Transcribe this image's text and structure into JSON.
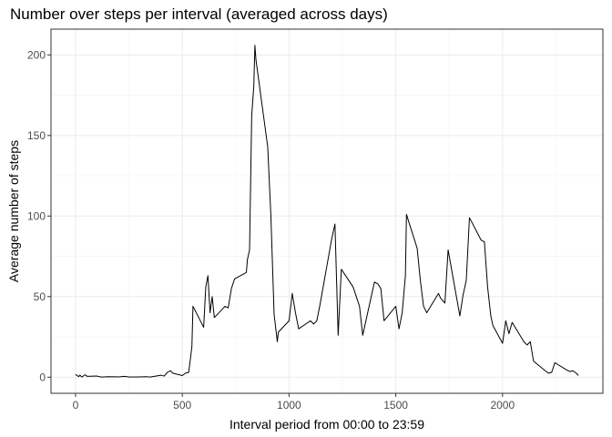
{
  "chart_data": {
    "type": "line",
    "title": "Number over steps per interval (averaged across days)",
    "xlabel": "Interval period from 00:00 to 23:59",
    "ylabel": "Average number of steps",
    "xlim": [
      -115,
      2470
    ],
    "ylim": [
      -10,
      216
    ],
    "xticks": [
      0,
      500,
      1000,
      1500,
      2000
    ],
    "yticks": [
      0,
      50,
      100,
      150,
      200
    ],
    "grid": true,
    "series": [
      {
        "x": [
          0,
          15,
          20,
          30,
          45,
          55,
          100,
          120,
          135,
          150,
          200,
          230,
          250,
          300,
          330,
          350,
          400,
          415,
          430,
          445,
          455,
          500,
          515,
          530,
          545,
          550,
          600,
          610,
          620,
          630,
          640,
          650,
          700,
          715,
          730,
          745,
          800,
          805,
          815,
          825,
          835,
          840,
          845,
          900,
          915,
          930,
          945,
          950,
          1000,
          1015,
          1030,
          1045,
          1100,
          1115,
          1130,
          1145,
          1200,
          1215,
          1230,
          1245,
          1300,
          1330,
          1345,
          1400,
          1415,
          1430,
          1445,
          1500,
          1515,
          1530,
          1545,
          1550,
          1600,
          1615,
          1630,
          1645,
          1700,
          1710,
          1730,
          1745,
          1800,
          1815,
          1830,
          1845,
          1900,
          1915,
          1930,
          1945,
          1955,
          2000,
          2015,
          2030,
          2045,
          2100,
          2115,
          2130,
          2145,
          2200,
          2215,
          2230,
          2245,
          2300,
          2315,
          2330,
          2345,
          2355
        ],
        "y": [
          1.7,
          0.3,
          1.3,
          0.1,
          1.5,
          0.5,
          0.7,
          0.1,
          0.2,
          0.3,
          0.2,
          0.5,
          0.1,
          0.2,
          0.3,
          0.1,
          1.2,
          0.7,
          3.0,
          4.0,
          2.5,
          1.0,
          2.5,
          3.0,
          19.0,
          44.0,
          31.0,
          56.0,
          63.0,
          40.0,
          50.0,
          37.0,
          44.0,
          43.0,
          55.0,
          61.0,
          65.0,
          73.0,
          79.0,
          162.0,
          181.0,
          206.0,
          197.0,
          143.0,
          100.0,
          39.0,
          22.0,
          28.0,
          35.0,
          52.0,
          40.0,
          30.0,
          35.0,
          33.0,
          35.0,
          45.0,
          86.0,
          95.0,
          26.0,
          67.0,
          56.0,
          44.0,
          26.0,
          59.0,
          58.0,
          55.0,
          35.0,
          44.0,
          30.0,
          40.0,
          63.0,
          101.0,
          80.0,
          60.0,
          44.0,
          40.0,
          52.0,
          49.0,
          46.0,
          79.0,
          38.0,
          51.0,
          60.0,
          99.0,
          85.0,
          84.0,
          56.0,
          38.0,
          32.0,
          21.0,
          35.0,
          27.0,
          34.0,
          22.0,
          20.0,
          22.0,
          10.0,
          4.0,
          2.5,
          3.0,
          9.0,
          4.5,
          3.5,
          4.0,
          2.5,
          1.1
        ]
      }
    ]
  }
}
